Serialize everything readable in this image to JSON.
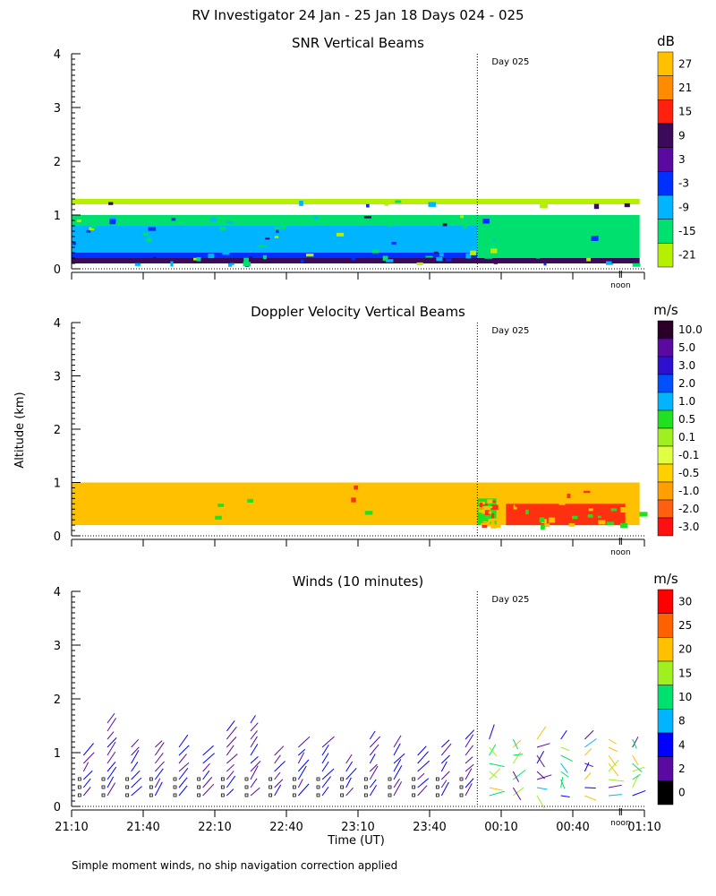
{
  "title": "RV Investigator  24 Jan - 25 Jan 18 Days 024 - 025",
  "ylabel": "Altitude (km)",
  "day_marker": "Day 025",
  "noon_label": "noon",
  "footnote": "Simple moment winds, no ship navigation correction applied",
  "chart_data": [
    {
      "id": "snr",
      "type": "heatmap",
      "title": "SNR Vertical Beams",
      "ylabel": "Altitude (km)",
      "ylim": [
        0,
        4
      ],
      "yticks": [
        "0",
        "1",
        "2",
        "3",
        "4"
      ],
      "xlim_minutes": [
        0,
        240
      ],
      "day_boundary_minutes": 170,
      "colorbar_unit": "dB",
      "colorbar_labels": [
        "27",
        "21",
        "15",
        "9",
        "3",
        "-3",
        "-9",
        "-15",
        "-21"
      ],
      "colorbar_colors": [
        "#ffc000",
        "#ff8c00",
        "#ff2010",
        "#3c0a5a",
        "#5a0aa0",
        "#0030ff",
        "#00b4ff",
        "#00e06e",
        "#b4f000"
      ],
      "layers": [
        {
          "x0": 0,
          "x1": 238,
          "y0": 0.1,
          "y1": 0.2,
          "color": "#3c0a5a"
        },
        {
          "x0": 0,
          "x1": 170,
          "y0": 0.2,
          "y1": 0.3,
          "color": "#0030ff"
        },
        {
          "x0": 0,
          "x1": 170,
          "y0": 0.3,
          "y1": 0.8,
          "color": "#00b4ff"
        },
        {
          "x0": 0,
          "x1": 170,
          "y0": 0.8,
          "y1": 1.0,
          "color": "#00e06e"
        },
        {
          "x0": 170,
          "x1": 238,
          "y0": 0.2,
          "y1": 1.0,
          "color": "#00e06e"
        },
        {
          "x0": 0,
          "x1": 238,
          "y0": 1.2,
          "y1": 1.3,
          "color": "#b4f000"
        }
      ]
    },
    {
      "id": "doppler",
      "type": "heatmap",
      "title": "Doppler Velocity Vertical Beams",
      "ylabel": "Altitude (km)",
      "ylim": [
        0,
        4
      ],
      "yticks": [
        "0",
        "1",
        "2",
        "3",
        "4"
      ],
      "xlim_minutes": [
        0,
        240
      ],
      "day_boundary_minutes": 170,
      "colorbar_unit": "m/s",
      "colorbar_labels": [
        "10.0",
        "5.0",
        "3.0",
        "2.0",
        "1.0",
        "0.5",
        "0.1",
        "-0.1",
        "-0.5",
        "-1.0",
        "-2.0",
        "-3.0"
      ],
      "colorbar_colors": [
        "#2a0028",
        "#5a0aa0",
        "#3010d0",
        "#0050ff",
        "#00b4ff",
        "#20e020",
        "#a0f020",
        "#e0ff40",
        "#ffd000",
        "#ffa000",
        "#ff6010",
        "#ff1010"
      ],
      "layers": [
        {
          "x0": 0,
          "x1": 170,
          "y0": 0.2,
          "y1": 1.0,
          "color": "#ffc000"
        },
        {
          "x0": 170,
          "x1": 238,
          "y0": 0.2,
          "y1": 1.0,
          "color": "#ffc000"
        },
        {
          "x0": 182,
          "x1": 232,
          "y0": 0.2,
          "y1": 0.6,
          "color": "#ff3010"
        },
        {
          "x0": 170,
          "x1": 178,
          "y0": 0.2,
          "y1": 0.7,
          "color": "#20e020"
        }
      ]
    },
    {
      "id": "winds",
      "type": "scatter",
      "title": "Winds (10 minutes)",
      "ylabel": "Altitude (km)",
      "xlabel": "Time (UT)",
      "ylim": [
        0,
        4
      ],
      "yticks": [
        "0",
        "1",
        "2",
        "3",
        "4"
      ],
      "xlim_minutes": [
        0,
        240
      ],
      "day_boundary_minutes": 170,
      "xticks": [
        "21:10",
        "21:40",
        "22:10",
        "22:40",
        "23:10",
        "23:40",
        "00:10",
        "00:40",
        "01:10"
      ],
      "colorbar_unit": "m/s",
      "colorbar_labels": [
        "30",
        "25",
        "20",
        "15",
        "10",
        "8",
        "4",
        "2",
        "0"
      ],
      "colorbar_colors": [
        "#ff0000",
        "#ff6000",
        "#ffc000",
        "#a0f020",
        "#00e06e",
        "#00b4ff",
        "#0000ff",
        "#5a0aa0",
        "#000000"
      ],
      "profile_times_minutes": [
        5,
        15,
        25,
        35,
        45,
        55,
        65,
        75,
        85,
        95,
        105,
        115,
        125,
        135,
        145,
        155,
        165,
        175,
        185,
        195,
        205,
        215,
        225,
        235
      ]
    }
  ]
}
